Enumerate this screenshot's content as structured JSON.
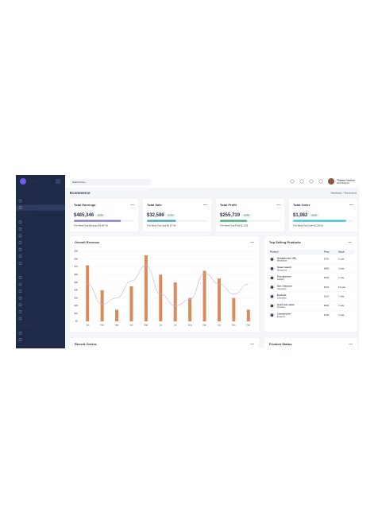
{
  "sidebar": {
    "brand": "Raho",
    "sections": [
      {
        "title": "Dashboards",
        "items": [
          "Default",
          "Ecommerce"
        ]
      },
      {
        "title": "Application",
        "items": [
          "Calendar",
          "Chat",
          "Todo",
          "Email",
          "Invoice",
          "Ecommerce",
          "Invoice"
        ]
      },
      {
        "title": "Pages",
        "items": [
          "Blog",
          "Authentication",
          "Error 404",
          "Coming Soon",
          "Charts",
          "Contacts",
          "Gallery"
        ]
      },
      {
        "title": "Components",
        "items": [
          "Form",
          "Table"
        ]
      }
    ]
  },
  "header": {
    "search_placeholder": "Search here...",
    "user_name": "Thomas Vachon",
    "user_role": "Web designer",
    "page_title": "Ecommerce",
    "breadcrumb": [
      "Dashboard",
      "/",
      "Ecommerce"
    ]
  },
  "stat_cards": [
    {
      "title": "Total Earnings",
      "value": "$485,346",
      "badge": "+6.5%",
      "progress": 78,
      "color": "#8a79c4",
      "note": "This Week Total Earnings $14,857.6k"
    },
    {
      "title": "Total Sale",
      "value": "$32,586",
      "badge": "+2.3%",
      "progress": 48,
      "color": "#3aa8b8",
      "note": "This Week Total Sale $3,257.4k"
    },
    {
      "title": "Total Profit",
      "value": "$255,719",
      "badge": "+4.5%",
      "progress": 45,
      "color": "#3bb273",
      "note": "This Week Total Profit $2,125k"
    },
    {
      "title": "Total Order",
      "value": "$1,082",
      "badge": "+5.6%",
      "progress": 88,
      "color": "#35c2dc",
      "note": "This Week Total Order $1,024.6k"
    }
  ],
  "chart_data": {
    "type": "bar",
    "title": "Overall Revenue",
    "categories": [
      "Jan",
      "Feb",
      "Mar",
      "Apr",
      "May",
      "Jun",
      "Jul",
      "Aug",
      "Sep",
      "Oct",
      "Nov",
      "Dec"
    ],
    "series": [
      {
        "type": "bar",
        "color": "#d98b5b",
        "values": [
          72,
          40,
          15,
          45,
          85,
          60,
          50,
          30,
          65,
          55,
          30,
          15
        ]
      },
      {
        "type": "line",
        "color": "#c2b3de",
        "values": [
          48,
          22,
          30,
          52,
          72,
          35,
          20,
          28,
          62,
          48,
          35,
          48
        ]
      }
    ],
    "ylim": [
      0,
      90
    ],
    "yticks": [
      {
        "value": 0,
        "label": "$0"
      },
      {
        "value": 10,
        "label": "$10"
      },
      {
        "value": 20,
        "label": "$20"
      },
      {
        "value": 30,
        "label": "$30"
      },
      {
        "value": 40,
        "label": "$40"
      },
      {
        "value": 50,
        "label": "$50"
      },
      {
        "value": 60,
        "label": "$60"
      },
      {
        "value": 70,
        "label": "$70"
      },
      {
        "value": 80,
        "label": "$80"
      },
      {
        "value": 90,
        "label": "$90"
      }
    ],
    "grid": true
  },
  "top_products": {
    "title": "Top Selling Products",
    "columns": [
      "Product",
      "Price",
      "Stock"
    ],
    "rows": [
      [
        "Headphones JBL",
        "Electronics",
        "$750",
        "5 sale"
      ],
      [
        "Smart watch",
        "Electronics",
        "$480",
        "3 sale"
      ],
      [
        "Sun glasses",
        "Fashion",
        "$160",
        "2 sale"
      ],
      [
        "Eye shadows",
        "Cosmetics",
        "$140",
        "10 sale"
      ],
      [
        "Eyelash",
        "Cosmetics",
        "$120",
        "7 sale"
      ],
      [
        "Gold side table",
        "Furniture",
        "$950",
        "3 sale"
      ],
      [
        "Lawnmower",
        "Products",
        "$750",
        "4 sale"
      ]
    ]
  },
  "bottom_cards": [
    "Recent Orders",
    "Product Status"
  ]
}
